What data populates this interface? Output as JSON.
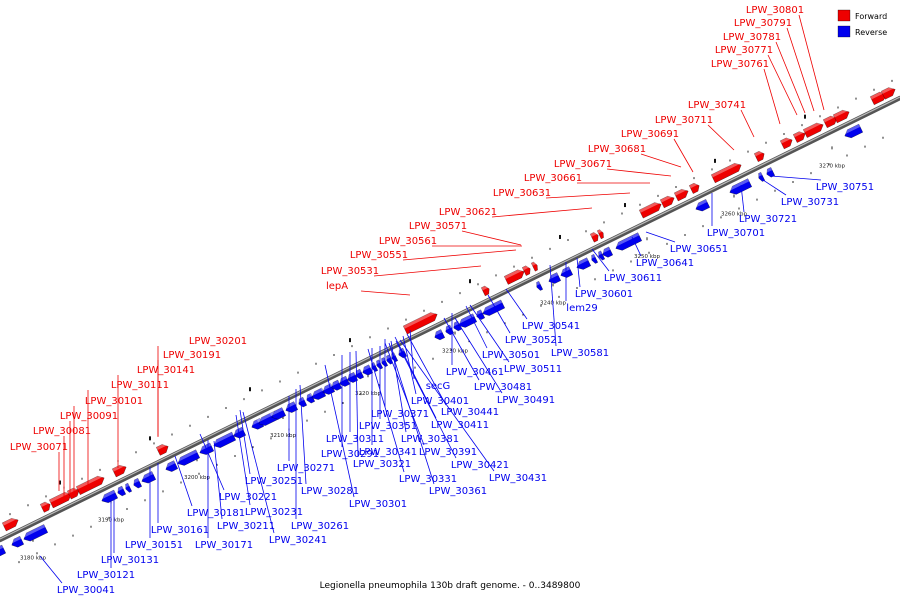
{
  "caption": "Legionella pneumophila 130b draft genome. - 0..3489800",
  "legend": [
    {
      "label": "Forward",
      "color": "#ee0000"
    },
    {
      "label": "Reverse",
      "color": "#0000ee"
    }
  ],
  "colors": {
    "forward": "#ee0000",
    "reverse": "#0000ee",
    "backbone": "#888888"
  },
  "ruler_ticks": [
    "3180 kbp",
    "3190 kbp",
    "3200 kbp",
    "3210 kbp",
    "3220 kbp",
    "3230 kbp",
    "3240 kbp",
    "3250 kbp",
    "3260 kbp",
    "3270 kbp"
  ],
  "forward_labels": [
    "LPW_30801",
    "LPW_30791",
    "LPW_30781",
    "LPW_30771",
    "LPW_30761",
    "LPW_30741",
    "LPW_30711",
    "LPW_30691",
    "LPW_30681",
    "LPW_30671",
    "LPW_30661",
    "LPW_30631",
    "LPW_30621",
    "LPW_30571",
    "LPW_30561",
    "LPW_30551",
    "LPW_30531",
    "lepA",
    "LPW_30201",
    "LPW_30191",
    "LPW_30141",
    "LPW_30111",
    "LPW_30101",
    "LPW_30091",
    "LPW_30081",
    "LPW_30071"
  ],
  "reverse_labels": [
    "LPW_30751",
    "LPW_30731",
    "LPW_30721",
    "LPW_30701",
    "LPW_30651",
    "LPW_30641",
    "LPW_30611",
    "LPW_30601",
    "lem29",
    "LPW_30581",
    "LPW_30541",
    "LPW_30521",
    "LPW_30501",
    "LPW_30511",
    "LPW_30461",
    "LPW_30481",
    "LPW_30491",
    "secG",
    "LPW_30401",
    "LPW_30441",
    "LPW_30371",
    "LPW_30411",
    "LPW_30351",
    "LPW_30381",
    "LPW_30311",
    "LPW_30341",
    "LPW_30391",
    "LPW_30291",
    "LPW_30321",
    "LPW_30421",
    "LPW_30271",
    "LPW_30331",
    "LPW_30431",
    "LPW_30281",
    "LPW_30361",
    "LPW_30251",
    "LPW_30301",
    "LPW_30221",
    "LPW_30231",
    "LPW_30261",
    "LPW_30181",
    "LPW_30211",
    "LPW_30241",
    "LPW_30161",
    "LPW_30171",
    "LPW_30151",
    "LPW_30131",
    "LPW_30121",
    "LPW_30041"
  ]
}
